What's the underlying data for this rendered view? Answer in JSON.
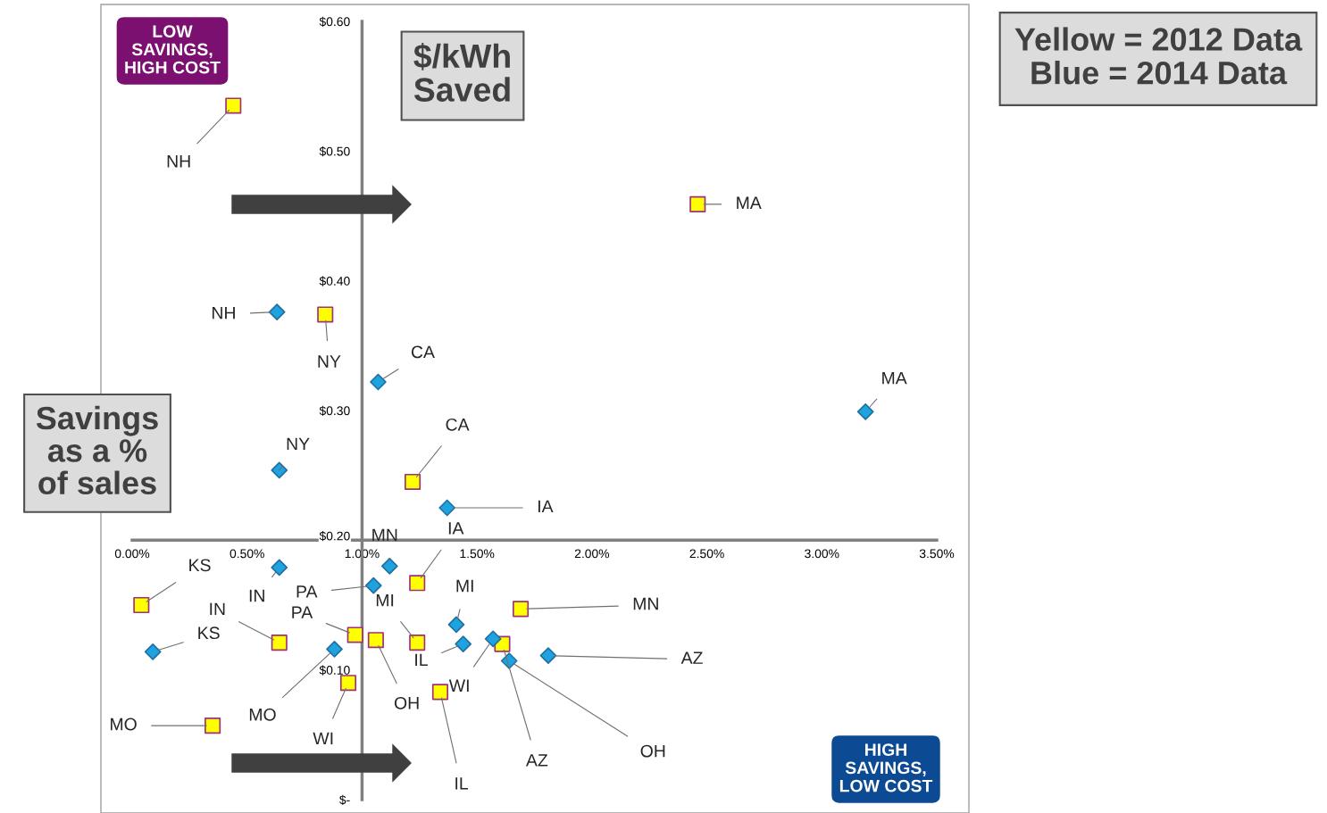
{
  "chart_data": {
    "type": "scatter",
    "xlabel": "Savings\nas a %\nof sales",
    "ylabel": "$/kWh\nSaved",
    "xlim": [
      0,
      3.5
    ],
    "ylim": [
      0,
      0.6
    ],
    "xticks": [
      {
        "value": 0,
        "label": "0.00%"
      },
      {
        "value": 0.5,
        "label": "0.50%"
      },
      {
        "value": 1.0,
        "label": "1.00%"
      },
      {
        "value": 1.5,
        "label": "1.50%"
      },
      {
        "value": 2.0,
        "label": "2.00%"
      },
      {
        "value": 2.5,
        "label": "2.50%"
      },
      {
        "value": 3.0,
        "label": "3.00%"
      },
      {
        "value": 3.5,
        "label": "3.50%"
      }
    ],
    "yticks": [
      {
        "value": 0,
        "label": "$-"
      },
      {
        "value": 0.1,
        "label": "$0.10"
      },
      {
        "value": 0.2,
        "label": "$0.20"
      },
      {
        "value": 0.3,
        "label": "$0.30"
      },
      {
        "value": 0.4,
        "label": "$0.40"
      },
      {
        "value": 0.5,
        "label": "$0.50"
      },
      {
        "value": 0.6,
        "label": "$0.60"
      }
    ],
    "grid": false,
    "legend": false,
    "series": [
      {
        "color": "#ffff00",
        "marker": "square",
        "x": [
          0.44,
          2.46,
          0.84,
          1.22,
          1.24,
          0.04,
          1.69,
          0.64,
          0.97,
          1.06,
          1.24,
          1.61,
          0.94,
          1.34,
          0.35
        ],
        "values": [
          0.535,
          0.459,
          0.374,
          0.245,
          0.167,
          0.15,
          0.147,
          0.121,
          0.127,
          0.123,
          0.121,
          0.12,
          0.09,
          0.083,
          0.057
        ]
      },
      {
        "color": "#1fa3e0",
        "marker": "diamond",
        "x": [
          0.63,
          1.07,
          3.19,
          0.64,
          1.37,
          1.12,
          0.64,
          1.05,
          1.41,
          0.09,
          0.88,
          1.44,
          1.57,
          1.64,
          1.81
        ],
        "values": [
          0.376,
          0.322,
          0.299,
          0.254,
          0.225,
          0.18,
          0.179,
          0.165,
          0.135,
          0.114,
          0.116,
          0.12,
          0.124,
          0.107,
          0.111
        ]
      }
    ],
    "annotations": [
      "LOW\nSAVINGS,\nHIGH COST",
      "HIGH\nSAVINGS,\nLOW COST",
      "Yellow = 2012 Data\nBlue = 2014 Data",
      {
        "text": "NH",
        "x": 0.44,
        "y": 0.535
      },
      {
        "text": "MA",
        "x": 2.46,
        "y": 0.459
      },
      {
        "text": "NY",
        "x": 0.84,
        "y": 0.374
      },
      {
        "text": "CA",
        "x": 1.22,
        "y": 0.245
      },
      {
        "text": "IA",
        "x": 1.24,
        "y": 0.167
      },
      {
        "text": "KS",
        "x": 0.04,
        "y": 0.15
      },
      {
        "text": "MN",
        "x": 1.69,
        "y": 0.147
      },
      {
        "text": "IN",
        "x": 0.64,
        "y": 0.121
      },
      {
        "text": "PA",
        "x": 0.97,
        "y": 0.127
      },
      {
        "text": "OH",
        "x": 1.06,
        "y": 0.123
      },
      {
        "text": "MI",
        "x": 1.24,
        "y": 0.121
      },
      {
        "text": "AZ",
        "x": 1.61,
        "y": 0.12
      },
      {
        "text": "WI",
        "x": 0.94,
        "y": 0.09
      },
      {
        "text": "IL",
        "x": 1.34,
        "y": 0.083
      },
      {
        "text": "MO",
        "x": 0.35,
        "y": 0.057
      },
      {
        "text": "NH",
        "x": 0.63,
        "y": 0.376
      },
      {
        "text": "CA",
        "x": 1.07,
        "y": 0.322
      },
      {
        "text": "MA",
        "x": 3.19,
        "y": 0.299
      },
      {
        "text": "NY",
        "x": 0.64,
        "y": 0.254
      },
      {
        "text": "IA",
        "x": 1.37,
        "y": 0.225
      },
      {
        "text": "MN",
        "x": 1.12,
        "y": 0.18
      },
      {
        "text": "IN",
        "x": 0.64,
        "y": 0.179
      },
      {
        "text": "PA",
        "x": 1.05,
        "y": 0.165
      },
      {
        "text": "MI",
        "x": 1.41,
        "y": 0.135
      },
      {
        "text": "KS",
        "x": 0.09,
        "y": 0.114
      },
      {
        "text": "MO",
        "x": 0.88,
        "y": 0.116
      },
      {
        "text": "IL",
        "x": 1.44,
        "y": 0.12
      },
      {
        "text": "WI",
        "x": 1.57,
        "y": 0.124
      },
      {
        "text": "OH",
        "x": 1.64,
        "y": 0.107
      },
      {
        "text": "AZ",
        "x": 1.81,
        "y": 0.111
      }
    ]
  }
}
